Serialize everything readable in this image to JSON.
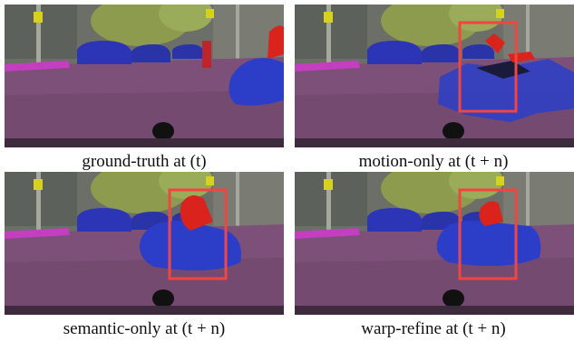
{
  "panels": [
    {
      "caption": "ground-truth at (t)"
    },
    {
      "caption": "motion-only at (t + n)"
    },
    {
      "caption": "semantic-only at (t + n)"
    },
    {
      "caption": "warp-refine at (t + n)"
    }
  ]
}
